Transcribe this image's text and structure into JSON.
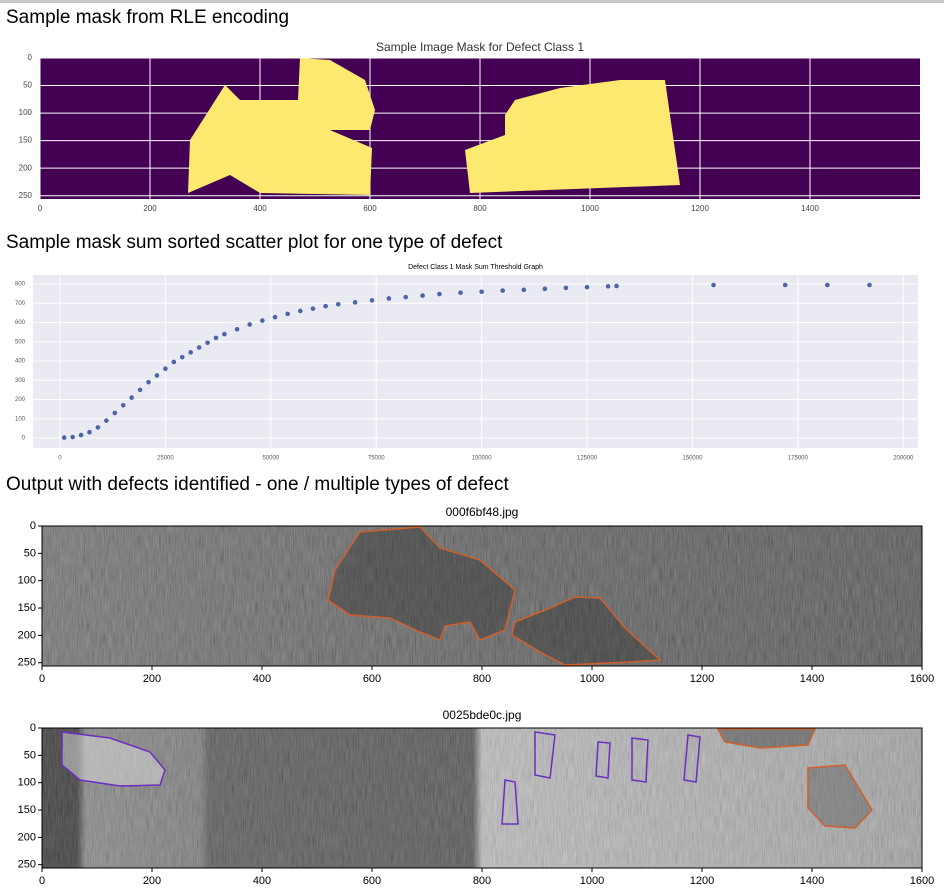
{
  "heading_1": "Sample mask from RLE encoding",
  "figure_1": {
    "type": "image",
    "title": "Sample Image Mask for Defect Class 1",
    "xlim": [
      0,
      1600
    ],
    "ylim": [
      0,
      256
    ],
    "xticks": [
      0,
      200,
      400,
      600,
      800,
      1000,
      1200,
      1400
    ],
    "yticks": [
      0,
      50,
      100,
      150,
      200,
      250
    ],
    "grid": true
  },
  "heading_2": "Sample mask sum sorted scatter plot for one type of defect",
  "figure_2": {
    "type": "scatter",
    "title": "Defect Class 1 Mask Sum Threshold Graph",
    "color": "#4c64a8",
    "x": [
      1000,
      3000,
      5000,
      7000,
      9000,
      11000,
      13000,
      15000,
      17000,
      19000,
      21000,
      23000,
      25000,
      27000,
      29000,
      31000,
      33000,
      35000,
      37000,
      39000,
      42000,
      45000,
      48000,
      51000,
      54000,
      57000,
      60000,
      63000,
      66000,
      70000,
      74000,
      78000,
      82000,
      86000,
      90000,
      95000,
      100000,
      105000,
      110000,
      115000,
      120000,
      125000,
      130000,
      132000,
      155000,
      172000,
      182000,
      192000
    ],
    "values": [
      2,
      5,
      15,
      30,
      55,
      90,
      130,
      170,
      210,
      250,
      290,
      325,
      360,
      395,
      420,
      445,
      470,
      495,
      520,
      540,
      565,
      590,
      610,
      628,
      645,
      660,
      672,
      685,
      695,
      705,
      715,
      725,
      732,
      740,
      748,
      755,
      760,
      766,
      770,
      775,
      780,
      784,
      788,
      790,
      795,
      795,
      795,
      795
    ],
    "xlim": [
      -6400,
      203500
    ],
    "ylim": [
      -52,
      847
    ],
    "xticks": [
      0,
      25000,
      50000,
      75000,
      100000,
      125000,
      150000,
      175000,
      200000
    ],
    "yticks": [
      0,
      100,
      200,
      300,
      400,
      500,
      600,
      700,
      800
    ],
    "grid": true
  },
  "heading_3": "Output with defects identified - one / multiple types of defect",
  "figure_3": {
    "type": "image",
    "title": "000f6bf48.jpg",
    "xlim": [
      0,
      1600
    ],
    "ylim": [
      0,
      256
    ],
    "xticks": [
      0,
      200,
      400,
      600,
      800,
      1000,
      1200,
      1400,
      1600
    ],
    "yticks": [
      0,
      50,
      100,
      150,
      200,
      250
    ],
    "grid": false
  },
  "figure_4": {
    "type": "image",
    "title": "0025bde0c.jpg",
    "xlim": [
      0,
      1600
    ],
    "ylim": [
      0,
      256
    ],
    "xticks": [
      0,
      200,
      400,
      600,
      800,
      1000,
      1200,
      1400,
      1600
    ],
    "yticks": [
      0,
      50,
      100,
      150,
      200,
      250
    ],
    "grid": false
  }
}
